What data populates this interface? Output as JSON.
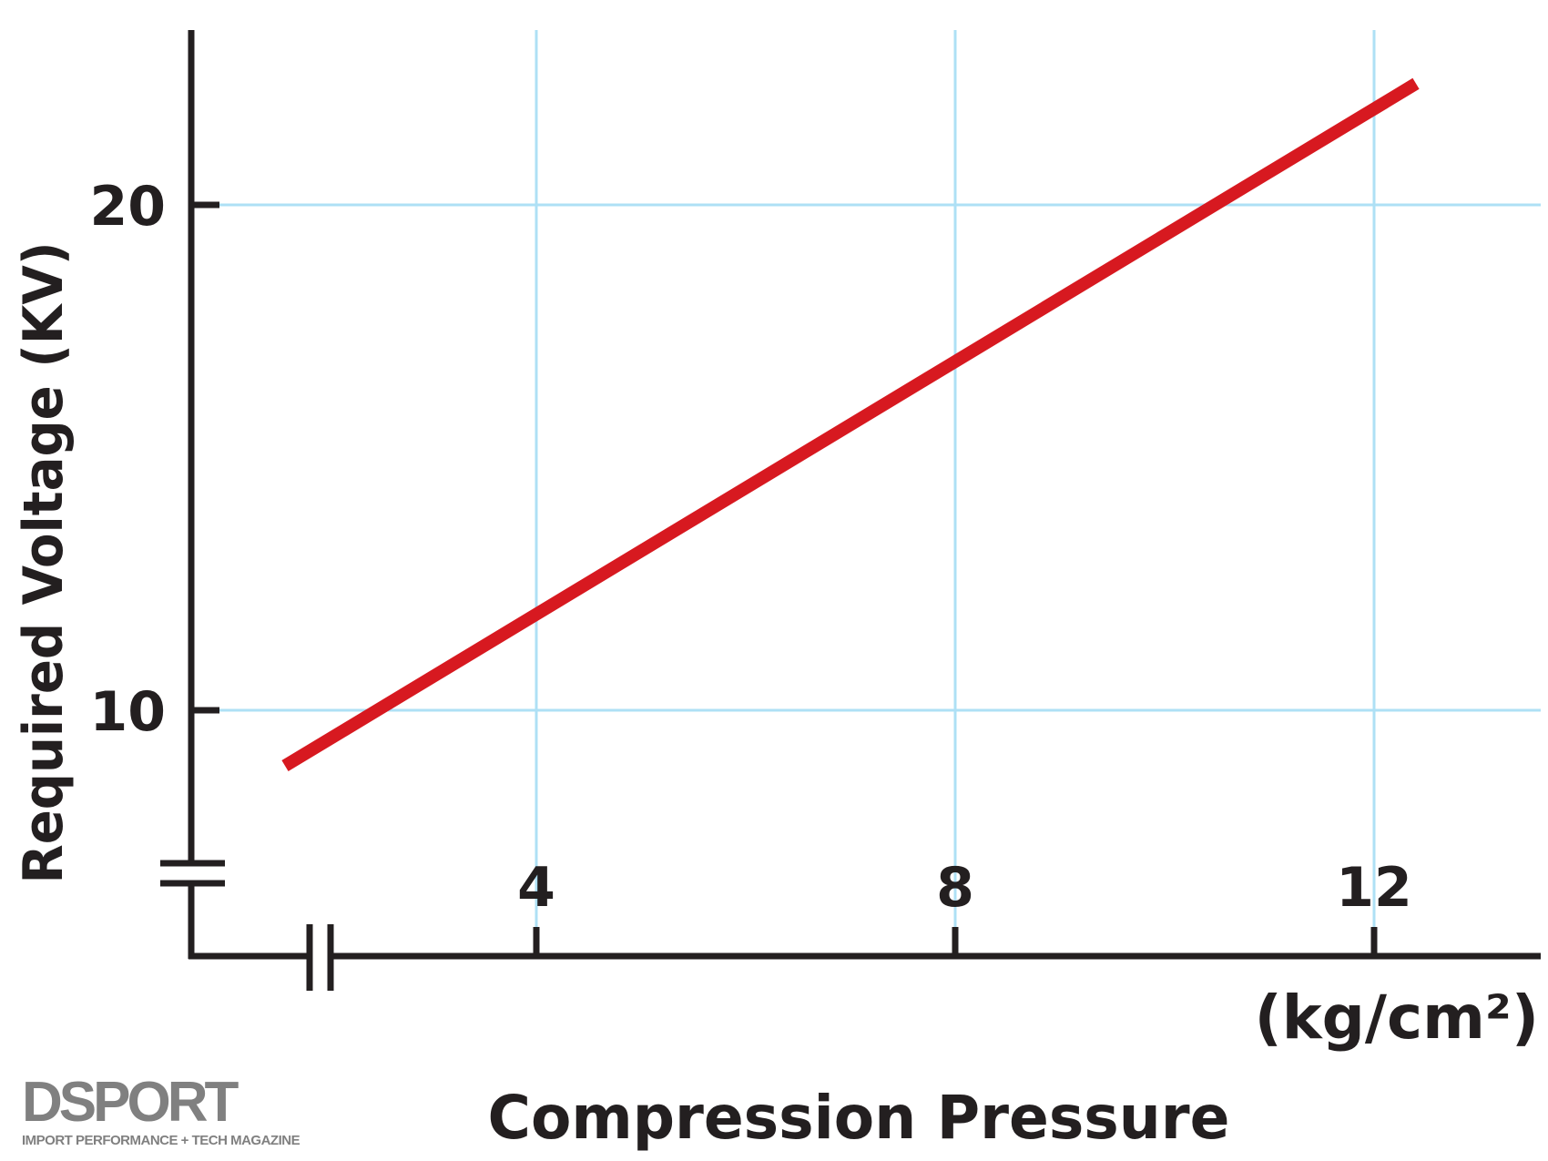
{
  "chart_data": {
    "type": "line",
    "title": "",
    "xlabel": "Compression Pressure",
    "xunit": "(kg/cm²)",
    "ylabel": "Required Voltage (KV)",
    "xticks": [
      4,
      8,
      12
    ],
    "yticks": [
      10,
      20
    ],
    "xlim": [
      1.2,
      13.7
    ],
    "ylim": [
      5.0,
      23.3
    ],
    "axis_breaks": [
      "x",
      "y"
    ],
    "grid": true,
    "series": [
      {
        "name": "Required Voltage",
        "color": "#d71920",
        "x": [
          1.6,
          12.4
        ],
        "y": [
          8.9,
          22.4
        ]
      }
    ]
  },
  "logo": {
    "name": "DSPORT",
    "tagline": "IMPORT PERFORMANCE + TECH MAGAZINE"
  },
  "colors": {
    "grid": "#aee0f5",
    "axis": "#231f20",
    "line": "#d71920"
  }
}
